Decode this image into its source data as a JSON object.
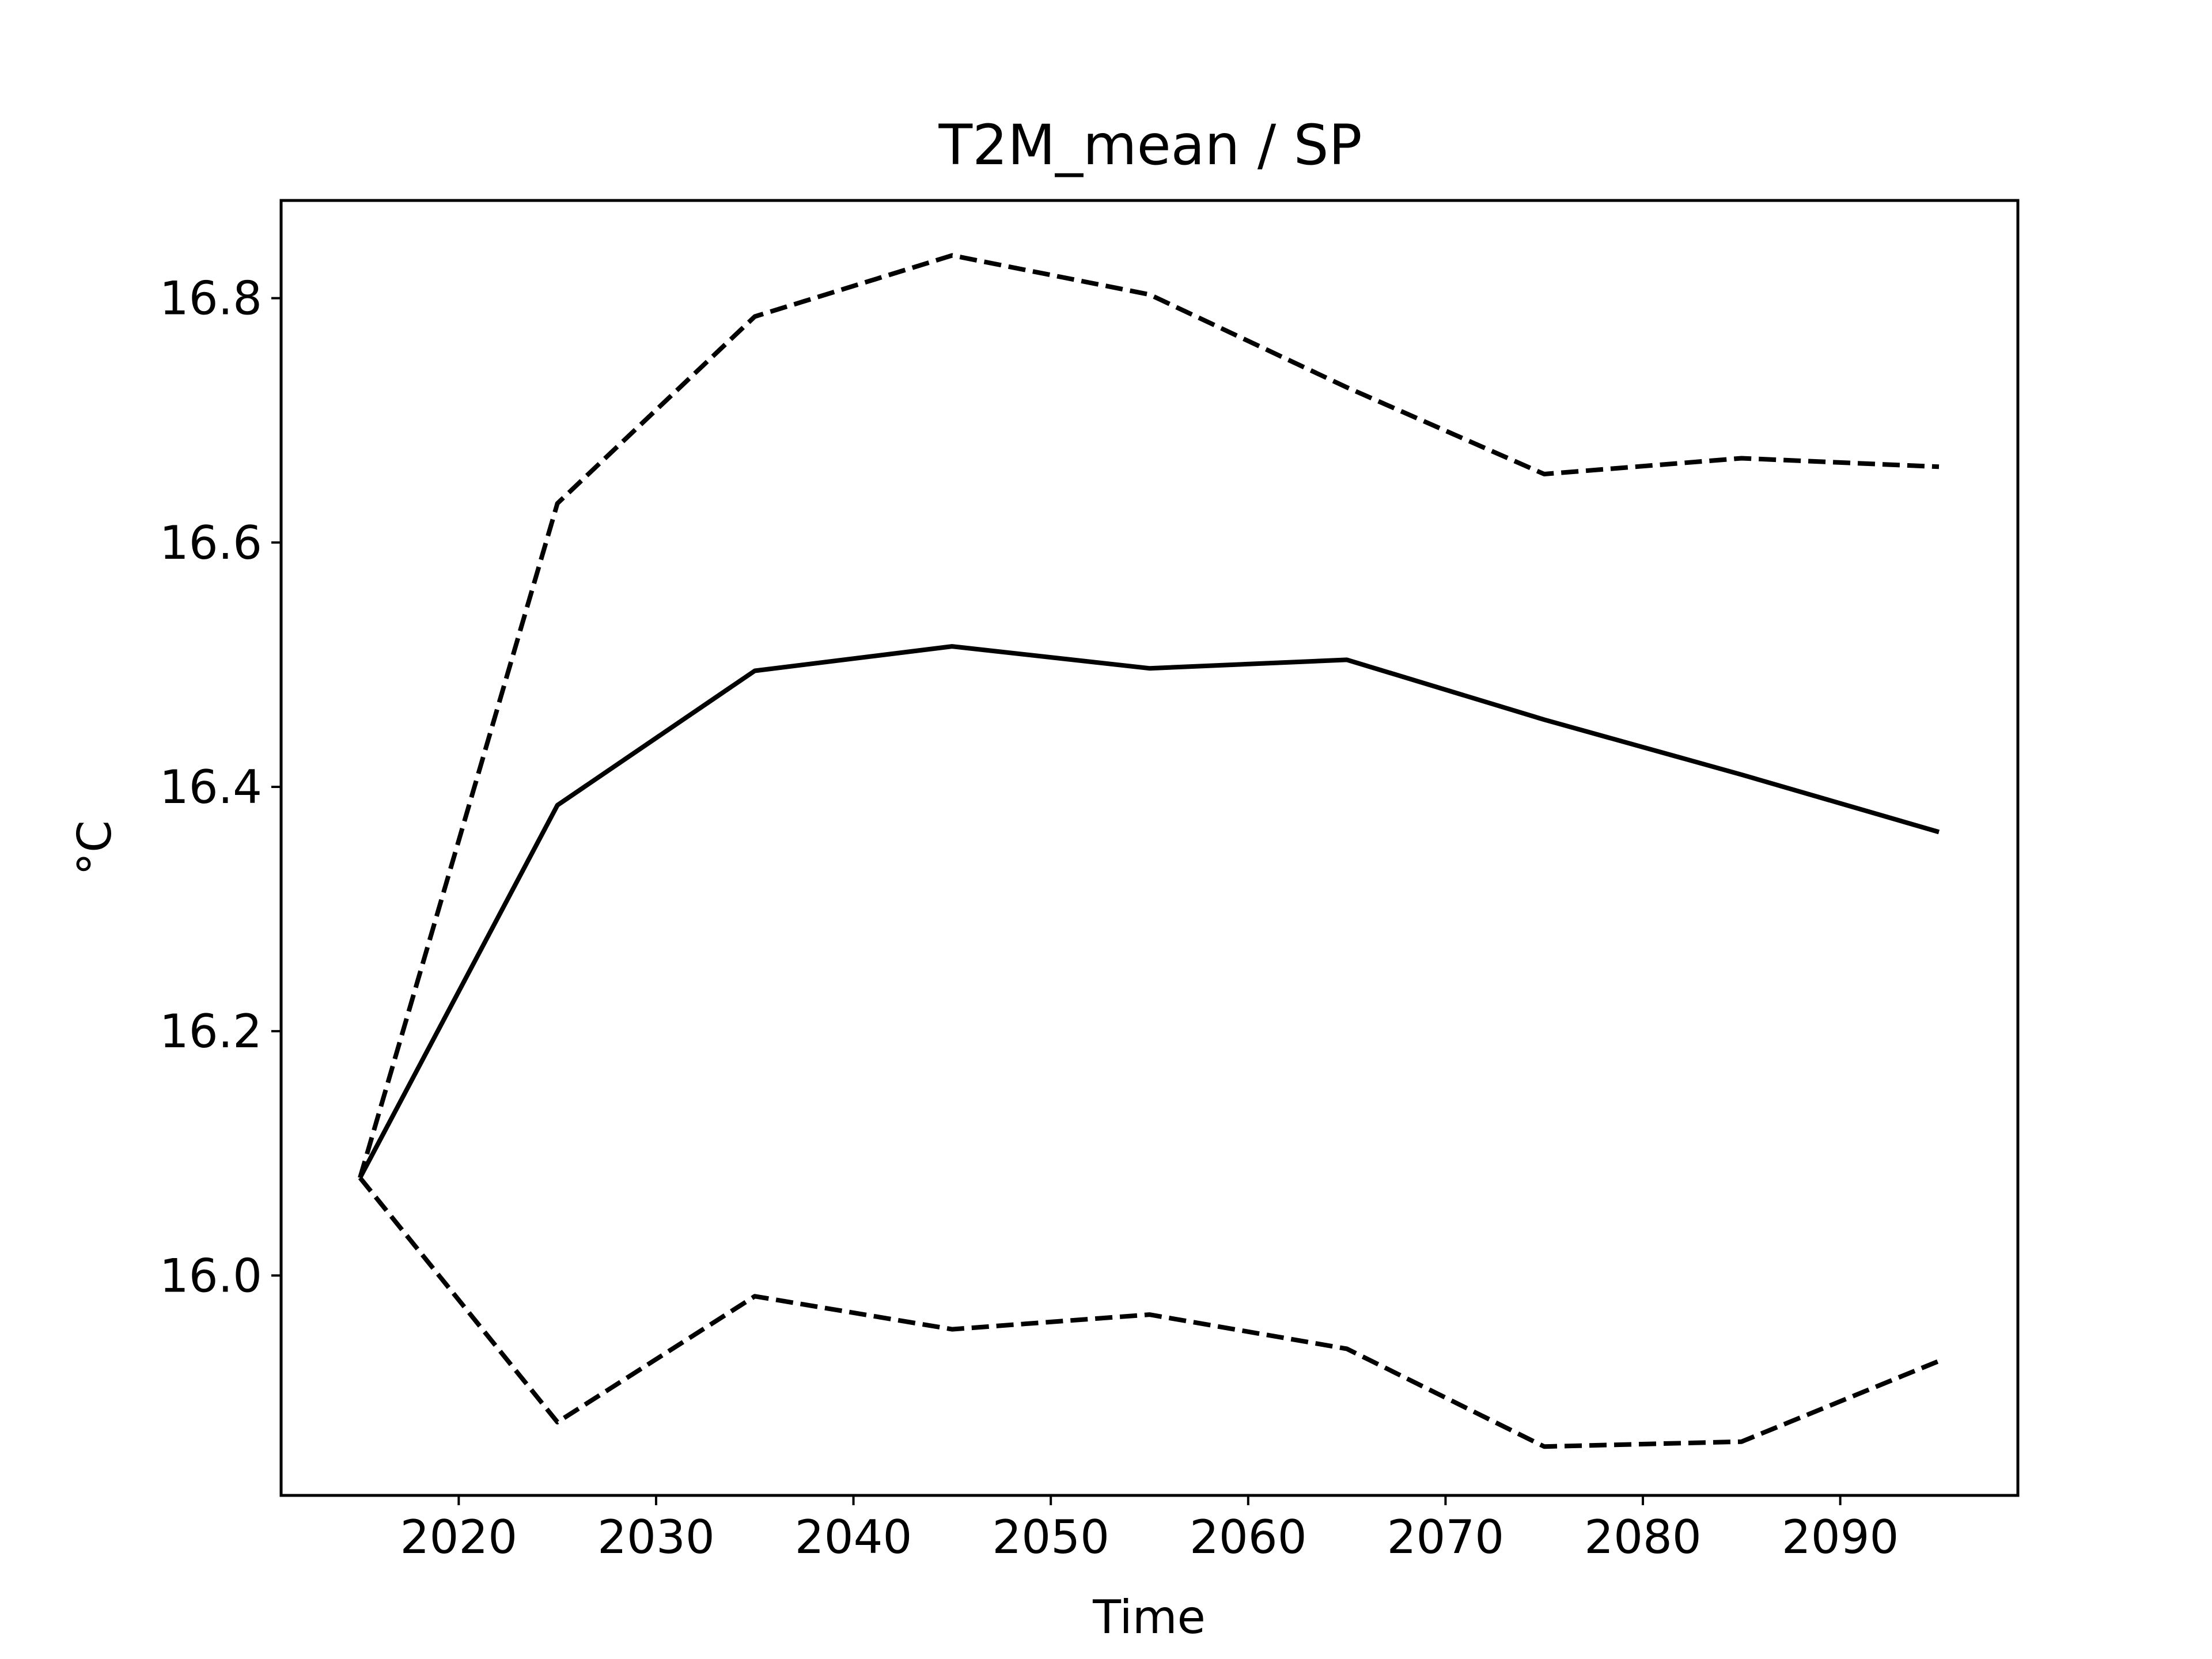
{
  "chart_data": {
    "type": "line",
    "title": "T2M_mean / SP",
    "xlabel": "Time",
    "ylabel": "°C",
    "xlim": [
      2011,
      2099
    ],
    "ylim": [
      15.82,
      16.88
    ],
    "grid": false,
    "x_ticks": [
      2020,
      2030,
      2040,
      2050,
      2060,
      2070,
      2080,
      2090
    ],
    "y_ticks": [
      16.0,
      16.2,
      16.4,
      16.6,
      16.8
    ],
    "y_tick_labels": [
      "16.0",
      "16.2",
      "16.4",
      "16.6",
      "16.8"
    ],
    "x": [
      2015,
      2025,
      2035,
      2045,
      2055,
      2065,
      2075,
      2085,
      2095
    ],
    "series": [
      {
        "style": "solid",
        "values": [
          16.08,
          16.385,
          16.495,
          16.515,
          16.497,
          16.504,
          16.455,
          16.41,
          16.363
        ]
      },
      {
        "style": "dashed",
        "values": [
          16.08,
          16.632,
          16.785,
          16.835,
          16.803,
          16.727,
          16.656,
          16.669,
          16.662
        ]
      },
      {
        "style": "dashed",
        "values": [
          16.08,
          15.88,
          15.983,
          15.956,
          15.968,
          15.94,
          15.86,
          15.864,
          15.93
        ]
      }
    ],
    "colors": {
      "line": "#000000",
      "axes": "#000000",
      "background": "#ffffff"
    }
  }
}
